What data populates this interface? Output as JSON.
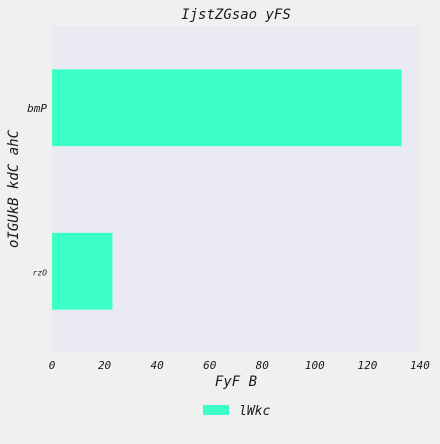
{
  "chart_data": {
    "type": "bar",
    "orientation": "horizontal",
    "title": "IjstZGsao yFS",
    "xlabel": "FyF B",
    "ylabel": "oIGUkB kdC ahC",
    "categories": [
      "rzO",
      "bmP"
    ],
    "series": [
      {
        "name": "lWkc",
        "values": [
          23,
          133
        ],
        "color": "#3cffc8"
      }
    ],
    "xlim": [
      0,
      140
    ],
    "xticks": [
      0,
      20,
      40,
      60,
      80,
      100,
      120,
      140
    ],
    "grid": false,
    "legend_position": "bottom-center",
    "plot_background": "#e9eaf2",
    "page_background": "#f0f0f0"
  }
}
